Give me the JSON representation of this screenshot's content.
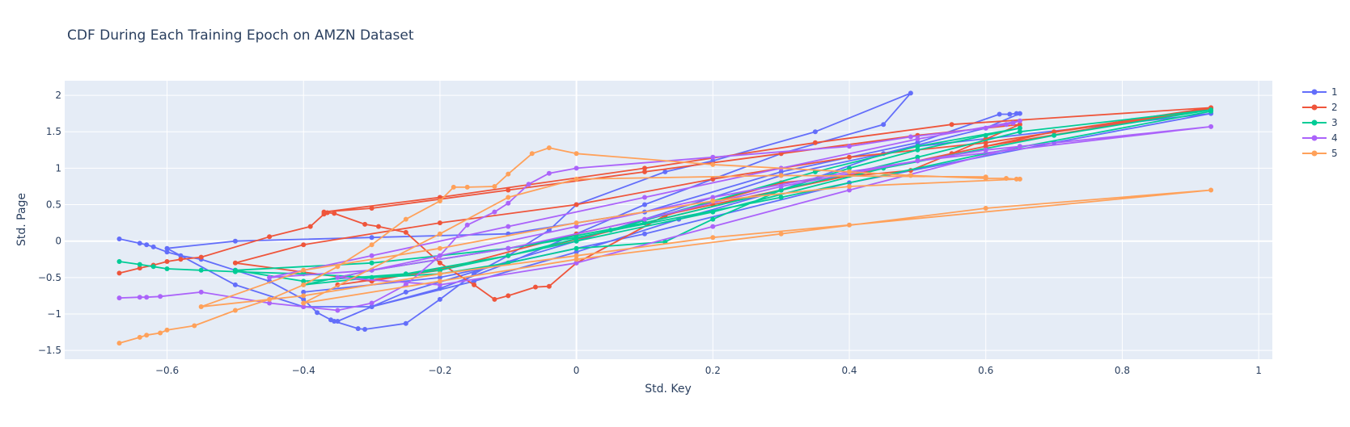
{
  "chart_data": {
    "type": "line",
    "title": "CDF During Each Training Epoch on AMZN Dataset",
    "xlabel": "Std. Key",
    "ylabel": "Std. Page",
    "xlim": [
      -0.75,
      1.02
    ],
    "ylim": [
      -1.62,
      2.2
    ],
    "x_ticks": [
      -0.6,
      -0.4,
      -0.2,
      0,
      0.2,
      0.4,
      0.6,
      0.8,
      1
    ],
    "x_tick_labels": [
      "−0.6",
      "−0.4",
      "−0.2",
      "0",
      "0.2",
      "0.4",
      "0.6",
      "0.8",
      "1"
    ],
    "y_ticks": [
      -1.5,
      -1,
      -0.5,
      0,
      0.5,
      1,
      1.5,
      2
    ],
    "y_tick_labels": [
      "−1.5",
      "−1",
      "−0.5",
      "0",
      "0.5",
      "1",
      "1.5",
      "2"
    ],
    "grid": true,
    "legend_position": "top-right",
    "plot_bgcolor": "#e5ecf6",
    "series": [
      {
        "name": "1",
        "color": "#636efa",
        "points": [
          [
            -0.67,
            0.03
          ],
          [
            -0.64,
            -0.03
          ],
          [
            -0.63,
            -0.05
          ],
          [
            -0.62,
            -0.08
          ],
          [
            -0.6,
            -0.15
          ],
          [
            -0.58,
            -0.2
          ],
          [
            -0.55,
            -0.25
          ],
          [
            -0.5,
            -0.4
          ],
          [
            -0.45,
            -0.55
          ],
          [
            -0.4,
            -0.8
          ],
          [
            -0.38,
            -0.98
          ],
          [
            -0.36,
            -1.08
          ],
          [
            -0.355,
            -1.1
          ],
          [
            -0.32,
            -1.2
          ],
          [
            -0.31,
            -1.21
          ],
          [
            -0.25,
            -1.13
          ],
          [
            -0.2,
            -0.8
          ],
          [
            -0.15,
            -0.45
          ],
          [
            -0.1,
            -0.2
          ],
          [
            -0.04,
            0.15
          ],
          [
            0,
            0.5
          ],
          [
            0.13,
            0.95
          ],
          [
            0.2,
            1.1
          ],
          [
            0.35,
            1.5
          ],
          [
            0.49,
            2.03
          ],
          [
            0.45,
            1.6
          ],
          [
            0.3,
            1.2
          ],
          [
            0.2,
            0.85
          ],
          [
            0.1,
            0.5
          ],
          [
            0.0,
            0.1
          ],
          [
            -0.1,
            -0.3
          ],
          [
            -0.2,
            -0.65
          ],
          [
            -0.3,
            -0.9
          ],
          [
            -0.4,
            -0.9
          ],
          [
            -0.5,
            -0.6
          ],
          [
            -0.6,
            -0.1
          ],
          [
            -0.5,
            0.0
          ],
          [
            -0.3,
            0.05
          ],
          [
            -0.1,
            0.1
          ],
          [
            0.1,
            0.4
          ],
          [
            0.3,
            0.95
          ],
          [
            0.5,
            1.35
          ],
          [
            0.62,
            1.74
          ],
          [
            0.635,
            1.74
          ],
          [
            0.645,
            1.75
          ],
          [
            0.65,
            1.75
          ],
          [
            0.6,
            1.55
          ],
          [
            0.45,
            1.2
          ],
          [
            0.3,
            0.7
          ],
          [
            0.15,
            0.3
          ],
          [
            0.0,
            -0.15
          ],
          [
            -0.15,
            -0.55
          ],
          [
            -0.3,
            -0.9
          ],
          [
            -0.35,
            -1.1
          ],
          [
            -0.25,
            -0.7
          ],
          [
            0.0,
            0.0
          ],
          [
            0.3,
            0.9
          ],
          [
            0.5,
            1.3
          ],
          [
            0.93,
            1.75
          ],
          [
            0.7,
            1.35
          ],
          [
            0.4,
            0.8
          ],
          [
            0.1,
            0.1
          ],
          [
            -0.2,
            -0.5
          ],
          [
            -0.4,
            -0.7
          ]
        ]
      },
      {
        "name": "2",
        "color": "#ef553b",
        "points": [
          [
            -0.67,
            -0.44
          ],
          [
            -0.64,
            -0.37
          ],
          [
            -0.62,
            -0.33
          ],
          [
            -0.6,
            -0.28
          ],
          [
            -0.58,
            -0.25
          ],
          [
            -0.55,
            -0.22
          ],
          [
            -0.45,
            0.06
          ],
          [
            -0.39,
            0.2
          ],
          [
            -0.37,
            0.37
          ],
          [
            -0.365,
            0.39
          ],
          [
            -0.355,
            0.38
          ],
          [
            -0.31,
            0.23
          ],
          [
            -0.29,
            0.2
          ],
          [
            -0.25,
            0.12
          ],
          [
            -0.2,
            -0.3
          ],
          [
            -0.15,
            -0.6
          ],
          [
            -0.12,
            -0.8
          ],
          [
            -0.1,
            -0.75
          ],
          [
            -0.06,
            -0.63
          ],
          [
            -0.04,
            -0.62
          ],
          [
            0.0,
            -0.3
          ],
          [
            0.13,
            0.35
          ],
          [
            0.3,
            0.8
          ],
          [
            0.49,
            0.97
          ],
          [
            0.55,
            1.2
          ],
          [
            0.6,
            1.4
          ],
          [
            0.65,
            1.6
          ],
          [
            0.5,
            1.45
          ],
          [
            0.3,
            1.2
          ],
          [
            0.1,
            0.95
          ],
          [
            -0.1,
            0.7
          ],
          [
            -0.3,
            0.45
          ],
          [
            -0.37,
            0.4
          ],
          [
            -0.2,
            0.6
          ],
          [
            0.1,
            1.0
          ],
          [
            0.35,
            1.35
          ],
          [
            0.55,
            1.6
          ],
          [
            0.93,
            1.83
          ],
          [
            0.7,
            1.5
          ],
          [
            0.5,
            1.1
          ],
          [
            0.3,
            0.7
          ],
          [
            0.1,
            0.25
          ],
          [
            -0.1,
            -0.2
          ],
          [
            -0.3,
            -0.55
          ],
          [
            -0.5,
            -0.3
          ],
          [
            -0.4,
            -0.05
          ],
          [
            -0.2,
            0.25
          ],
          [
            0.0,
            0.5
          ],
          [
            0.2,
            0.85
          ],
          [
            0.4,
            1.15
          ],
          [
            0.6,
            1.35
          ],
          [
            0.93,
            1.82
          ],
          [
            0.6,
            1.3
          ],
          [
            0.4,
            0.9
          ],
          [
            0.2,
            0.5
          ],
          [
            0.0,
            0.1
          ],
          [
            -0.2,
            -0.4
          ],
          [
            -0.35,
            -0.6
          ]
        ]
      },
      {
        "name": "3",
        "color": "#00cc96",
        "points": [
          [
            -0.67,
            -0.28
          ],
          [
            -0.64,
            -0.32
          ],
          [
            -0.62,
            -0.35
          ],
          [
            -0.6,
            -0.38
          ],
          [
            -0.55,
            -0.4
          ],
          [
            -0.5,
            -0.42
          ],
          [
            -0.4,
            -0.45
          ],
          [
            -0.3,
            -0.5
          ],
          [
            -0.2,
            -0.45
          ],
          [
            -0.1,
            -0.3
          ],
          [
            0.0,
            -0.1
          ],
          [
            0.13,
            -0.01
          ],
          [
            0.2,
            0.3
          ],
          [
            0.3,
            0.7
          ],
          [
            0.4,
            1.0
          ],
          [
            0.5,
            1.25
          ],
          [
            0.6,
            1.45
          ],
          [
            0.65,
            1.55
          ],
          [
            0.5,
            1.3
          ],
          [
            0.35,
            0.95
          ],
          [
            0.2,
            0.55
          ],
          [
            0.05,
            0.15
          ],
          [
            -0.1,
            -0.2
          ],
          [
            -0.25,
            -0.45
          ],
          [
            -0.4,
            -0.55
          ],
          [
            -0.5,
            -0.4
          ],
          [
            -0.3,
            -0.3
          ],
          [
            -0.1,
            -0.1
          ],
          [
            0.1,
            0.25
          ],
          [
            0.3,
            0.7
          ],
          [
            0.5,
            1.15
          ],
          [
            0.65,
            1.5
          ],
          [
            0.93,
            1.8
          ],
          [
            0.7,
            1.45
          ],
          [
            0.45,
            1.0
          ],
          [
            0.2,
            0.4
          ],
          [
            0.0,
            0.0
          ],
          [
            -0.2,
            -0.4
          ],
          [
            -0.4,
            -0.6
          ],
          [
            -0.3,
            -0.4
          ],
          [
            0.0,
            0.05
          ],
          [
            0.3,
            0.6
          ],
          [
            0.6,
            1.2
          ],
          [
            0.93,
            1.78
          ]
        ]
      },
      {
        "name": "4",
        "color": "#ab63fa",
        "points": [
          [
            -0.67,
            -0.78
          ],
          [
            -0.64,
            -0.77
          ],
          [
            -0.63,
            -0.77
          ],
          [
            -0.61,
            -0.76
          ],
          [
            -0.55,
            -0.7
          ],
          [
            -0.45,
            -0.85
          ],
          [
            -0.4,
            -0.9
          ],
          [
            -0.35,
            -0.95
          ],
          [
            -0.3,
            -0.85
          ],
          [
            -0.25,
            -0.6
          ],
          [
            -0.2,
            -0.2
          ],
          [
            -0.16,
            0.22
          ],
          [
            -0.12,
            0.4
          ],
          [
            -0.1,
            0.52
          ],
          [
            -0.07,
            0.78
          ],
          [
            -0.04,
            0.93
          ],
          [
            0.0,
            1.0
          ],
          [
            0.2,
            1.15
          ],
          [
            0.4,
            1.3
          ],
          [
            0.49,
            1.43
          ],
          [
            0.6,
            1.55
          ],
          [
            0.63,
            1.6
          ],
          [
            0.64,
            1.62
          ],
          [
            0.65,
            1.65
          ],
          [
            0.5,
            1.4
          ],
          [
            0.3,
            1.0
          ],
          [
            0.1,
            0.6
          ],
          [
            -0.1,
            0.2
          ],
          [
            -0.3,
            -0.2
          ],
          [
            -0.45,
            -0.5
          ],
          [
            -0.3,
            -0.4
          ],
          [
            -0.1,
            -0.1
          ],
          [
            0.1,
            0.3
          ],
          [
            0.3,
            0.75
          ],
          [
            0.5,
            1.1
          ],
          [
            0.93,
            1.57
          ],
          [
            0.6,
            1.25
          ],
          [
            0.4,
            0.95
          ],
          [
            0.2,
            0.6
          ],
          [
            0.0,
            0.2
          ],
          [
            -0.2,
            -0.2
          ],
          [
            -0.35,
            -0.5
          ],
          [
            -0.2,
            -0.6
          ],
          [
            0.0,
            -0.3
          ],
          [
            0.2,
            0.2
          ],
          [
            0.4,
            0.7
          ],
          [
            0.65,
            1.3
          ]
        ]
      },
      {
        "name": "5",
        "color": "#ffa15a",
        "points": [
          [
            -0.67,
            -1.4
          ],
          [
            -0.64,
            -1.32
          ],
          [
            -0.63,
            -1.29
          ],
          [
            -0.61,
            -1.26
          ],
          [
            -0.6,
            -1.22
          ],
          [
            -0.56,
            -1.16
          ],
          [
            -0.5,
            -0.95
          ],
          [
            -0.45,
            -0.8
          ],
          [
            -0.4,
            -0.6
          ],
          [
            -0.35,
            -0.35
          ],
          [
            -0.3,
            -0.05
          ],
          [
            -0.25,
            0.3
          ],
          [
            -0.2,
            0.55
          ],
          [
            -0.18,
            0.74
          ],
          [
            -0.16,
            0.74
          ],
          [
            -0.12,
            0.75
          ],
          [
            -0.1,
            0.92
          ],
          [
            -0.065,
            1.2
          ],
          [
            -0.04,
            1.28
          ],
          [
            0.0,
            1.2
          ],
          [
            0.2,
            1.05
          ],
          [
            0.4,
            0.95
          ],
          [
            0.49,
            0.9
          ],
          [
            0.6,
            0.86
          ],
          [
            0.63,
            0.86
          ],
          [
            0.645,
            0.85
          ],
          [
            0.65,
            0.85
          ],
          [
            0.4,
            0.75
          ],
          [
            0.2,
            0.55
          ],
          [
            0.0,
            0.25
          ],
          [
            -0.2,
            -0.1
          ],
          [
            -0.4,
            -0.4
          ],
          [
            -0.55,
            -0.9
          ],
          [
            -0.4,
            -0.75
          ],
          [
            -0.2,
            -0.45
          ],
          [
            0.0,
            -0.2
          ],
          [
            0.2,
            0.05
          ],
          [
            0.4,
            0.22
          ],
          [
            0.93,
            0.7
          ],
          [
            0.6,
            0.45
          ],
          [
            0.3,
            0.1
          ],
          [
            0.0,
            -0.25
          ],
          [
            -0.2,
            -0.55
          ],
          [
            -0.4,
            -0.85
          ],
          [
            -0.2,
            0.1
          ],
          [
            -0.1,
            0.6
          ],
          [
            0.0,
            0.85
          ],
          [
            0.3,
            0.9
          ],
          [
            0.6,
            0.88
          ]
        ]
      }
    ]
  }
}
